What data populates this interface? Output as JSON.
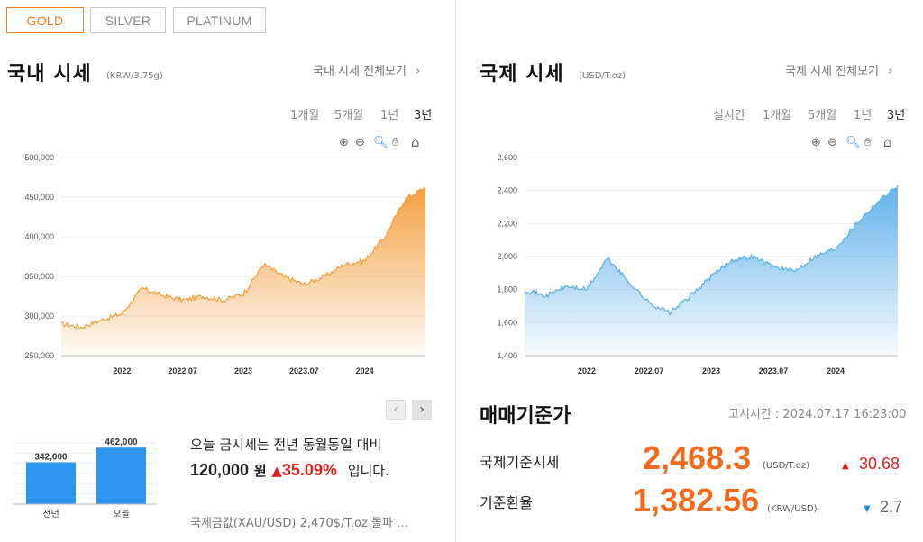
{
  "metal_tabs": [
    "GOLD",
    "SILVER",
    "PLATINUM"
  ],
  "domestic": {
    "title": "국내 시세",
    "unit": "(KRW/3.75g)",
    "more_link": "국내 시세 전체보기",
    "periods": [
      "1개월",
      "5개월",
      "1년",
      "3년"
    ],
    "selected_period": "3년"
  },
  "international": {
    "title": "국제 시세",
    "unit": "(USD/T.oz)",
    "more_link": "국제 시세 전체보기",
    "periods": [
      "실시간",
      "1개월",
      "5개월",
      "1년",
      "3년"
    ],
    "selected_period": "3년"
  },
  "chart_tools": [
    "zoom-in-icon",
    "zoom-out-icon",
    "magnifier-icon",
    "pan-hand-icon",
    "home-icon"
  ],
  "chart_data": [
    {
      "type": "area",
      "title": "",
      "color": "#f39c3a",
      "ylim": [
        250000,
        500000
      ],
      "y_ticks": [
        "500,000",
        "450,000",
        "400,000",
        "350,000",
        "300,000",
        "250,000"
      ],
      "x_ticks": [
        "2022",
        "2022.07",
        "2023",
        "2023.07",
        "2024"
      ],
      "series": [
        {
          "x": [
            "2021.07",
            "2021.09",
            "2021.11",
            "2022.01",
            "2022.03",
            "2022.05",
            "2022.07",
            "2022.09",
            "2022.11",
            "2023.01",
            "2023.03",
            "2023.05",
            "2023.07",
            "2023.09",
            "2023.11",
            "2024.01",
            "2024.03",
            "2024.05",
            "2024.07"
          ],
          "values": [
            290000,
            286000,
            295000,
            303000,
            335000,
            326000,
            320000,
            325000,
            320000,
            328000,
            365000,
            350000,
            340000,
            350000,
            365000,
            370000,
            400000,
            448000,
            462000
          ]
        }
      ]
    },
    {
      "type": "area",
      "title": "",
      "color": "#5aaee8",
      "ylim": [
        1400,
        2600
      ],
      "y_ticks": [
        "2,600",
        "2,400",
        "2,200",
        "2,000",
        "1,800",
        "1,600",
        "1,400"
      ],
      "x_ticks": [
        "2022",
        "2022.07",
        "2023",
        "2023.07",
        "2024"
      ],
      "series": [
        {
          "x": [
            "2021.07",
            "2021.09",
            "2021.11",
            "2022.01",
            "2022.03",
            "2022.05",
            "2022.07",
            "2022.09",
            "2022.11",
            "2023.01",
            "2023.03",
            "2023.05",
            "2023.07",
            "2023.09",
            "2023.11",
            "2024.01",
            "2024.03",
            "2024.05",
            "2024.07"
          ],
          "values": [
            1800,
            1760,
            1820,
            1800,
            1990,
            1850,
            1720,
            1660,
            1760,
            1880,
            1980,
            2000,
            1940,
            1910,
            2000,
            2050,
            2200,
            2330,
            2430
          ]
        }
      ]
    },
    {
      "type": "bar",
      "title": "",
      "categories": [
        "전년",
        "오늘"
      ],
      "values": [
        342000,
        462000
      ],
      "value_labels": [
        "342,000",
        "462,000"
      ],
      "ylim": [
        0,
        500000
      ],
      "color": "#2d96f0"
    }
  ],
  "summary": {
    "line1": "오늘 금시세는 전년 동월동일 대비",
    "amount": "120,000",
    "amount_unit": "원",
    "up_arrow": "▲",
    "percent": "35.09%",
    "suffix": "입니다.",
    "note": "국제금값(XAU/USD) 2,470$/T.oz 돌파 …"
  },
  "nav": {
    "prev": "‹",
    "next": "›"
  },
  "base_price": {
    "title": "매매기준가",
    "notice_time": "고시시간 : 2024.07.17 16:23:00",
    "rows": [
      {
        "label": "국제기준시세",
        "value": "2,468.3",
        "unit": "(USD/T.oz)",
        "direction": "▲",
        "change": "30.68",
        "change_color": "#e02020"
      },
      {
        "label": "기준환율",
        "value": "1,382.56",
        "unit": "(KRW/USD)",
        "direction": "▼",
        "change": "2.7",
        "change_color": "#1e8fe0"
      }
    ]
  },
  "colors": {
    "accent": "#f07b1e",
    "up": "#e02020",
    "down": "#1e8fe0",
    "orange_value": "#f26b1d"
  }
}
